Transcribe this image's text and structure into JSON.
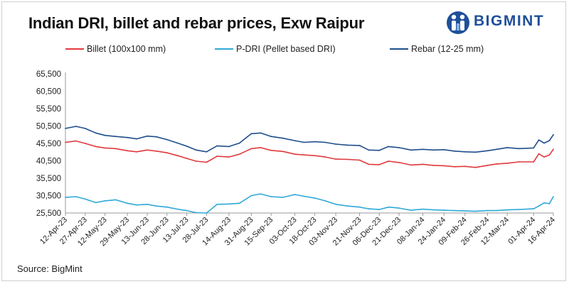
{
  "source": "Source: BigMint",
  "brand": "BIGMINT",
  "chart_data": {
    "type": "line",
    "title": "Indian DRI, billet and rebar prices, Exw Raipur",
    "xlabel": "",
    "ylabel": "",
    "ylim": [
      25500,
      65500
    ],
    "y_ticks": [
      "65,500",
      "60,500",
      "55,500",
      "50,500",
      "45,500",
      "40,500",
      "35,500",
      "30,500",
      "25,500"
    ],
    "x_ticks": [
      "12-Apr-23",
      "27-Apr-23",
      "12-May-23",
      "29-May-23",
      "13-Jun-23",
      "28-Jun-23",
      "13-Jul-23",
      "28-Jul-23",
      "14-Aug-23",
      "31-Aug-23",
      "15-Sep-23",
      "03-Oct-23",
      "18-Oct-23",
      "03-Nov-23",
      "21-Nov-23",
      "06-Dec-23",
      "21-Dec-23",
      "08-Jan-24",
      "24-Jan-24",
      "09-Feb-24",
      "26-Feb-24",
      "12-Mar-24",
      "01-Apr-24",
      "16-Apr-24"
    ],
    "grid": false,
    "legend_position": "top",
    "colors": {
      "Billet (100x100 mm)": "#e03a3e",
      "P-DRI (Pellet based DRI)": "#2fa9d8",
      "Rebar (12-25 mm)": "#1f4e8c"
    },
    "series": [
      {
        "name": "Billet (100x100 mm)",
        "x": [
          "12-Apr-23",
          "20-Apr-23",
          "27-Apr-23",
          "05-May-23",
          "12-May-23",
          "20-May-23",
          "29-May-23",
          "05-Jun-23",
          "13-Jun-23",
          "20-Jun-23",
          "28-Jun-23",
          "06-Jul-23",
          "13-Jul-23",
          "20-Jul-23",
          "28-Jul-23",
          "05-Aug-23",
          "14-Aug-23",
          "22-Aug-23",
          "31-Aug-23",
          "07-Sep-23",
          "15-Sep-23",
          "24-Sep-23",
          "03-Oct-23",
          "10-Oct-23",
          "18-Oct-23",
          "26-Oct-23",
          "03-Nov-23",
          "12-Nov-23",
          "21-Nov-23",
          "28-Nov-23",
          "06-Dec-23",
          "13-Dec-23",
          "21-Dec-23",
          "30-Dec-23",
          "08-Jan-24",
          "16-Jan-24",
          "24-Jan-24",
          "01-Feb-24",
          "09-Feb-24",
          "17-Feb-24",
          "26-Feb-24",
          "04-Mar-24",
          "12-Mar-24",
          "21-Mar-24",
          "01-Apr-24",
          "05-Apr-24",
          "09-Apr-24",
          "13-Apr-24",
          "16-Apr-24"
        ],
        "y": [
          45800,
          46200,
          45500,
          44600,
          44200,
          44000,
          43400,
          43100,
          43600,
          43300,
          42800,
          42000,
          41200,
          40400,
          40100,
          41800,
          41600,
          42400,
          44000,
          44300,
          43500,
          43200,
          42400,
          42200,
          42000,
          41600,
          41000,
          40900,
          40700,
          39500,
          39400,
          40400,
          40000,
          39300,
          39500,
          39200,
          39100,
          38800,
          38900,
          38600,
          39200,
          39600,
          39800,
          40200,
          40200,
          42500,
          41600,
          42200,
          43800
        ]
      },
      {
        "name": "P-DRI (Pellet based DRI)",
        "x": [
          "12-Apr-23",
          "20-Apr-23",
          "27-Apr-23",
          "05-May-23",
          "12-May-23",
          "20-May-23",
          "29-May-23",
          "05-Jun-23",
          "13-Jun-23",
          "20-Jun-23",
          "28-Jun-23",
          "06-Jul-23",
          "13-Jul-23",
          "20-Jul-23",
          "28-Jul-23",
          "05-Aug-23",
          "14-Aug-23",
          "22-Aug-23",
          "31-Aug-23",
          "07-Sep-23",
          "15-Sep-23",
          "24-Sep-23",
          "03-Oct-23",
          "10-Oct-23",
          "18-Oct-23",
          "26-Oct-23",
          "03-Nov-23",
          "12-Nov-23",
          "21-Nov-23",
          "28-Nov-23",
          "06-Dec-23",
          "13-Dec-23",
          "21-Dec-23",
          "30-Dec-23",
          "08-Jan-24",
          "16-Jan-24",
          "24-Jan-24",
          "01-Feb-24",
          "09-Feb-24",
          "17-Feb-24",
          "26-Feb-24",
          "04-Mar-24",
          "12-Mar-24",
          "21-Mar-24",
          "01-Apr-24",
          "05-Apr-24",
          "09-Apr-24",
          "13-Apr-24",
          "16-Apr-24"
        ],
        "y": [
          30000,
          30200,
          29500,
          28500,
          29000,
          29300,
          28300,
          27800,
          28000,
          27500,
          27200,
          26600,
          26200,
          25600,
          25500,
          28000,
          28100,
          28300,
          30500,
          31000,
          30200,
          30000,
          30800,
          30300,
          29800,
          29000,
          28000,
          27500,
          27200,
          26700,
          26500,
          27200,
          26900,
          26300,
          26600,
          26400,
          26300,
          26200,
          26100,
          26000,
          26200,
          26200,
          26400,
          26500,
          26700,
          27500,
          28400,
          28200,
          30200
        ]
      },
      {
        "name": "Rebar (12-25 mm)",
        "x": [
          "12-Apr-23",
          "20-Apr-23",
          "27-Apr-23",
          "05-May-23",
          "12-May-23",
          "20-May-23",
          "29-May-23",
          "05-Jun-23",
          "13-Jun-23",
          "20-Jun-23",
          "28-Jun-23",
          "06-Jul-23",
          "13-Jul-23",
          "20-Jul-23",
          "28-Jul-23",
          "05-Aug-23",
          "14-Aug-23",
          "22-Aug-23",
          "31-Aug-23",
          "07-Sep-23",
          "15-Sep-23",
          "24-Sep-23",
          "03-Oct-23",
          "10-Oct-23",
          "18-Oct-23",
          "26-Oct-23",
          "03-Nov-23",
          "12-Nov-23",
          "21-Nov-23",
          "28-Nov-23",
          "06-Dec-23",
          "13-Dec-23",
          "21-Dec-23",
          "30-Dec-23",
          "08-Jan-24",
          "16-Jan-24",
          "24-Jan-24",
          "01-Feb-24",
          "09-Feb-24",
          "17-Feb-24",
          "26-Feb-24",
          "04-Mar-24",
          "12-Mar-24",
          "21-Mar-24",
          "01-Apr-24",
          "05-Apr-24",
          "09-Apr-24",
          "13-Apr-24",
          "16-Apr-24"
        ],
        "y": [
          49800,
          50400,
          49800,
          48500,
          47800,
          47500,
          47200,
          46800,
          47600,
          47400,
          46600,
          45600,
          44700,
          43600,
          43100,
          44800,
          44600,
          45600,
          48300,
          48500,
          47500,
          47000,
          46300,
          45800,
          46000,
          45800,
          45300,
          45000,
          44900,
          43600,
          43500,
          44600,
          44300,
          43600,
          43800,
          43600,
          43700,
          43300,
          43100,
          43000,
          43400,
          43800,
          44300,
          44000,
          44200,
          46500,
          45600,
          46300,
          48000
        ]
      }
    ]
  }
}
